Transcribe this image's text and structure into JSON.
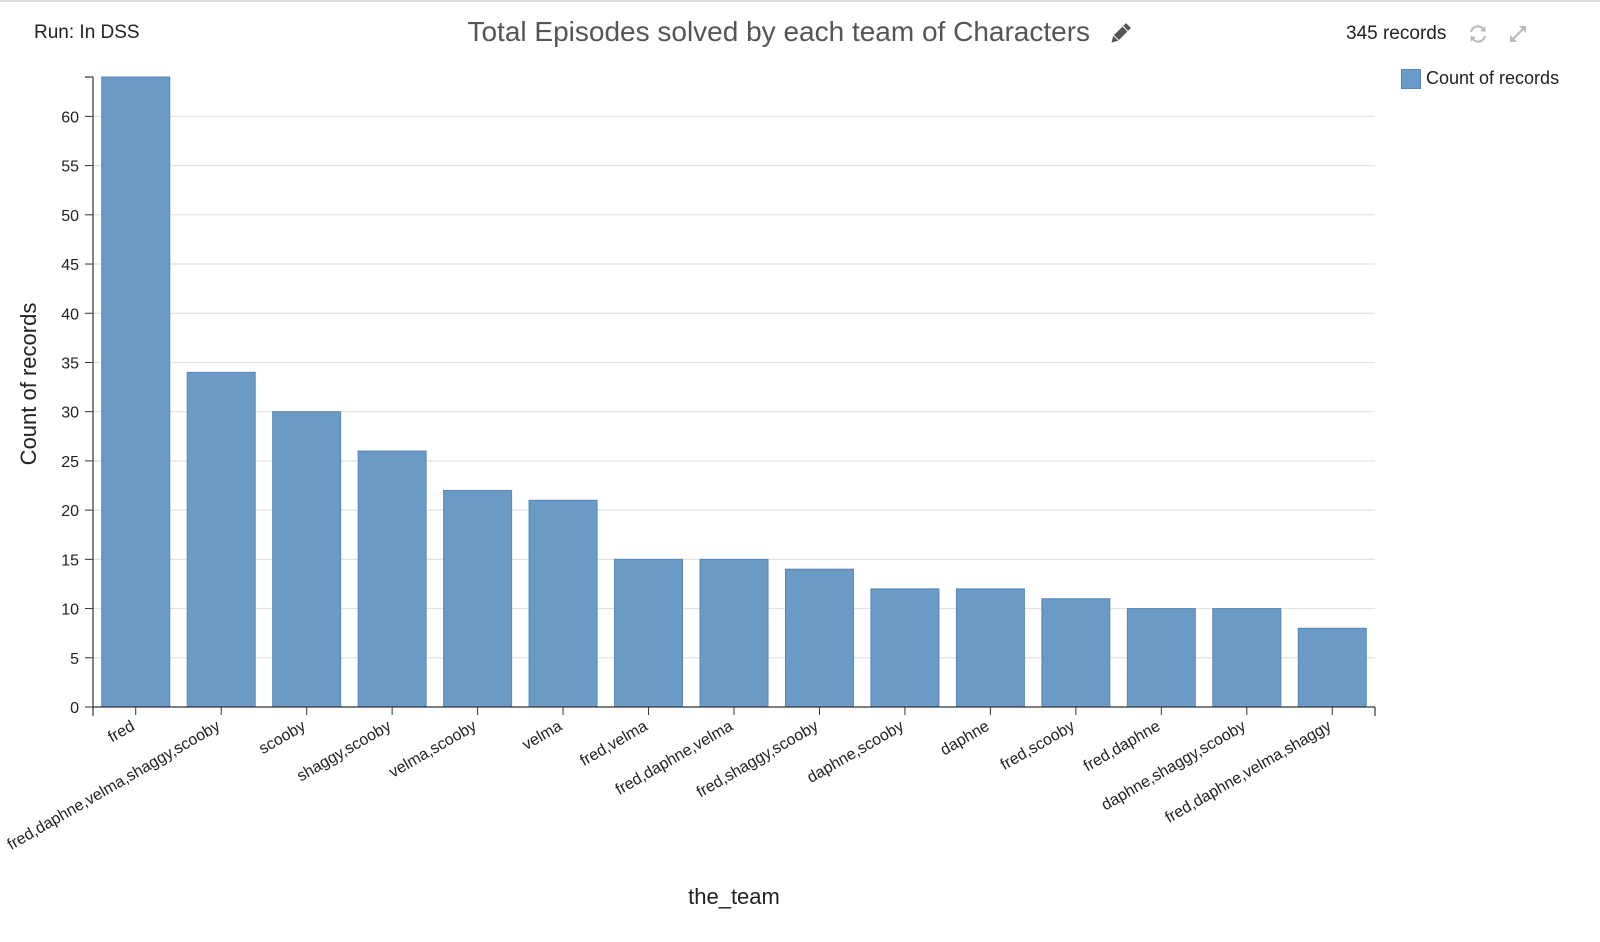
{
  "header": {
    "run_label": "Run: In DSS",
    "title": "Total Episodes solved by each team of Characters",
    "records_count": "345 records",
    "edit_icon": "pencil-icon",
    "refresh_icon": "refresh-icon",
    "expand_icon": "expand-icon"
  },
  "legend": {
    "label": "Count of records",
    "color": "#6a9ac6"
  },
  "chart_data": {
    "type": "bar",
    "title": "Total Episodes solved by each team of Characters",
    "xlabel": "the_team",
    "ylabel": "Count of records",
    "categories": [
      "fred",
      "fred,daphne,velma,shaggy,scooby",
      "scooby",
      "shaggy,scooby",
      "velma,scooby",
      "velma",
      "fred,velma",
      "fred,daphne,velma",
      "fred,shaggy,scooby",
      "daphne,scooby",
      "daphne",
      "fred,scooby",
      "fred,daphne",
      "daphne,shaggy,scooby",
      "fred,daphne,velma,shaggy"
    ],
    "series": [
      {
        "name": "Count of records",
        "values": [
          64,
          34,
          30,
          26,
          22,
          21,
          15,
          15,
          14,
          12,
          12,
          11,
          10,
          10,
          8
        ]
      }
    ],
    "ylim": [
      0,
      64
    ],
    "yticks": [
      0,
      5,
      10,
      15,
      20,
      25,
      30,
      35,
      40,
      45,
      50,
      55,
      60
    ],
    "grid": true,
    "legend_position": "top-right",
    "bar_color": "#6a9ac6"
  }
}
